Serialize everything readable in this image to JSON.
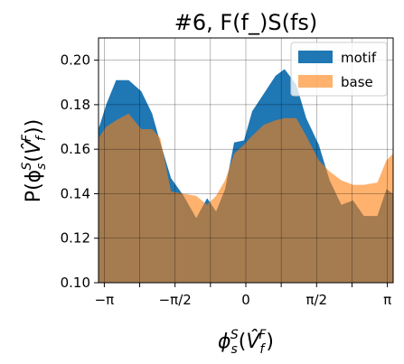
{
  "chart_data": {
    "type": "area",
    "title": "#6, F(f_)S(fs)",
    "xlabel": "ϕ",
    "xlabel_sup": "S",
    "xlabel_sub": "s",
    "xlabel_arg": "V̂",
    "xlabel_arg_sup": "F",
    "xlabel_arg_sub": "f",
    "ylabel": "P(ϕ",
    "ylabel_sup": "S",
    "ylabel_sub": "s",
    "ylabel_arg": "V̂",
    "ylabel_arg_sup": "F",
    "ylabel_arg_sub": "f",
    "xlim": [
      -3.27,
      3.27
    ],
    "ylim": [
      0.1,
      0.21
    ],
    "xticks": [
      {
        "value": -3.14159,
        "label": "−π"
      },
      {
        "value": -1.5708,
        "label": "−π/2"
      },
      {
        "value": 0,
        "label": "0"
      },
      {
        "value": 1.5708,
        "label": "π/2"
      },
      {
        "value": 3.14159,
        "label": "π"
      }
    ],
    "x_gridlines": [
      -3.14159,
      -2.35619,
      -1.5708,
      -0.7854,
      0,
      0.7854,
      1.5708,
      2.35619,
      3.14159
    ],
    "yticks": [
      {
        "value": 0.1,
        "label": "0.10"
      },
      {
        "value": 0.12,
        "label": "0.12"
      },
      {
        "value": 0.14,
        "label": "0.14"
      },
      {
        "value": 0.16,
        "label": "0.16"
      },
      {
        "value": 0.18,
        "label": "0.18"
      },
      {
        "value": 0.2,
        "label": "0.20"
      }
    ],
    "grid": true,
    "legend_position": "top-right",
    "x": [
      -3.27,
      -3.1,
      -2.88,
      -2.6,
      -2.32,
      -2.08,
      -1.9,
      -1.66,
      -1.38,
      -1.1,
      -0.86,
      -0.66,
      -0.46,
      -0.26,
      -0.04,
      0.14,
      0.4,
      0.66,
      0.86,
      1.12,
      1.34,
      1.62,
      1.86,
      2.12,
      2.38,
      2.62,
      2.92,
      3.12,
      3.27
    ],
    "series": [
      {
        "name": "motif",
        "color": "#1f77b4",
        "values": [
          0.169,
          0.18,
          0.191,
          0.191,
          0.186,
          0.176,
          0.163,
          0.147,
          0.139,
          0.129,
          0.138,
          0.132,
          0.142,
          0.163,
          0.164,
          0.177,
          0.185,
          0.193,
          0.196,
          0.189,
          0.174,
          0.162,
          0.146,
          0.135,
          0.137,
          0.13,
          0.13,
          0.142,
          0.14
        ]
      },
      {
        "name": "base",
        "color": "#ff7f0e",
        "alpha": 0.6,
        "values": [
          0.165,
          0.17,
          0.173,
          0.176,
          0.169,
          0.169,
          0.165,
          0.141,
          0.14,
          0.139,
          0.135,
          0.139,
          0.146,
          0.158,
          0.162,
          0.166,
          0.171,
          0.173,
          0.174,
          0.174,
          0.166,
          0.155,
          0.15,
          0.146,
          0.144,
          0.144,
          0.145,
          0.155,
          0.158
        ]
      }
    ]
  }
}
